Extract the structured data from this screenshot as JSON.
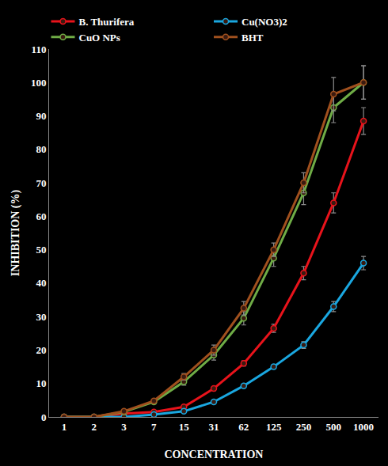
{
  "chart_data": {
    "type": "line",
    "x_label": "CONCENTRATION",
    "y_label": "INHIBITION (%)",
    "categories": [
      "1",
      "2",
      "3",
      "7",
      "15",
      "31",
      "62",
      "125",
      "250",
      "500",
      "1000"
    ],
    "series": [
      {
        "name": "B. Thurifera",
        "color": "#e8131b",
        "marker": "circle",
        "values": [
          0,
          0,
          1,
          1.5,
          3,
          8.5,
          16,
          26.5,
          43,
          64,
          88.5
        ],
        "errors": [
          0,
          0,
          0.2,
          0.3,
          0.4,
          0.6,
          0.8,
          1.2,
          2,
          3,
          4
        ]
      },
      {
        "name": "Cu(NO3)2",
        "color": "#1aa7e0",
        "marker": "circle",
        "values": [
          0,
          0,
          0,
          0.7,
          1.7,
          4.5,
          9.3,
          15,
          21.5,
          33,
          46
        ],
        "errors": [
          0,
          0,
          0,
          0.2,
          0.3,
          0.4,
          0.5,
          0.6,
          1,
          1.5,
          2
        ]
      },
      {
        "name": "CuO NPs",
        "color": "#6fac46",
        "marker": "circle",
        "values": [
          0,
          0,
          1.5,
          4.5,
          10.5,
          18.5,
          29.5,
          47.5,
          67,
          92.5,
          100
        ],
        "errors": [
          0,
          0,
          0.3,
          0.5,
          1,
          1.5,
          2,
          2.5,
          3.5,
          4.5,
          5
        ]
      },
      {
        "name": "BHT",
        "color": "#a0501e",
        "marker": "circle",
        "values": [
          0,
          0,
          1.7,
          4.8,
          12,
          20,
          32.5,
          50,
          70,
          96.5,
          100
        ],
        "errors": [
          0,
          0,
          0.3,
          0.5,
          1,
          1.5,
          2,
          2,
          3,
          5,
          5
        ]
      }
    ],
    "ylim": [
      0,
      110
    ],
    "yticks": [
      0,
      10,
      20,
      30,
      40,
      50,
      60,
      70,
      80,
      90,
      100,
      110
    ],
    "grid": false,
    "legend": "top"
  }
}
